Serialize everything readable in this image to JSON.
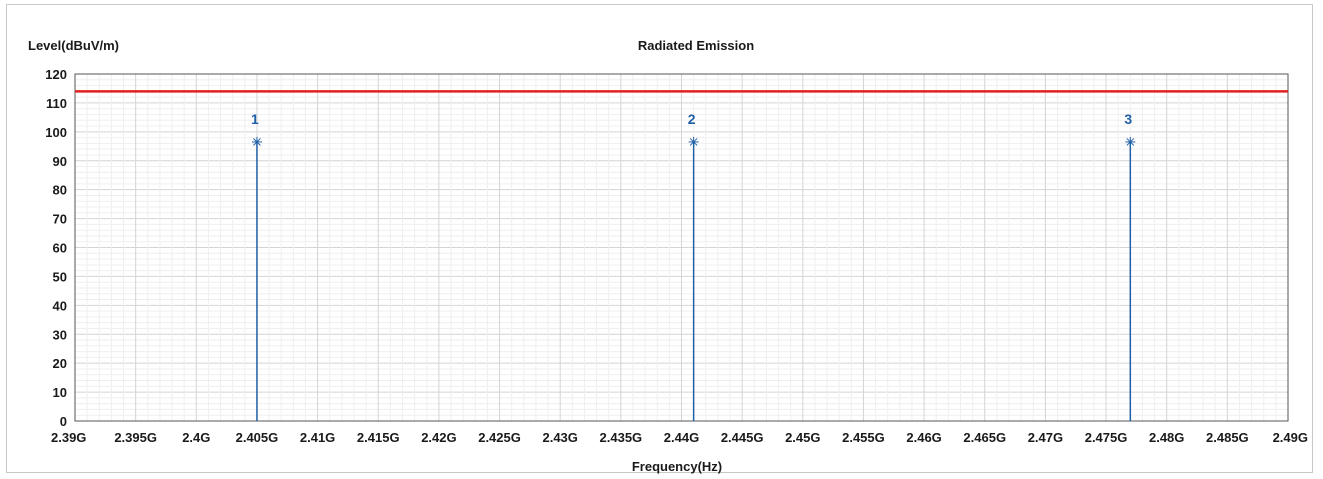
{
  "chart_data": {
    "type": "line",
    "title": "Radiated Emission",
    "ylabel": "Level(dBuV/m)",
    "xlabel": "Frequency(Hz)",
    "x_unit": "Hz",
    "ylim": [
      0,
      120
    ],
    "xlim": [
      2390000000,
      2490000000
    ],
    "yticks": [
      0,
      10,
      20,
      30,
      40,
      50,
      60,
      70,
      80,
      90,
      100,
      110,
      120
    ],
    "xticks": [
      {
        "value": 2390000000,
        "label": "2.39G"
      },
      {
        "value": 2395000000,
        "label": "2.395G"
      },
      {
        "value": 2400000000,
        "label": "2.4G"
      },
      {
        "value": 2405000000,
        "label": "2.405G"
      },
      {
        "value": 2410000000,
        "label": "2.41G"
      },
      {
        "value": 2415000000,
        "label": "2.415G"
      },
      {
        "value": 2420000000,
        "label": "2.42G"
      },
      {
        "value": 2425000000,
        "label": "2.425G"
      },
      {
        "value": 2430000000,
        "label": "2.43G"
      },
      {
        "value": 2435000000,
        "label": "2.435G"
      },
      {
        "value": 2440000000,
        "label": "2.44G"
      },
      {
        "value": 2445000000,
        "label": "2.445G"
      },
      {
        "value": 2450000000,
        "label": "2.45G"
      },
      {
        "value": 2455000000,
        "label": "2.455G"
      },
      {
        "value": 2460000000,
        "label": "2.46G"
      },
      {
        "value": 2465000000,
        "label": "2.465G"
      },
      {
        "value": 2470000000,
        "label": "2.47G"
      },
      {
        "value": 2475000000,
        "label": "2.475G"
      },
      {
        "value": 2480000000,
        "label": "2.48G"
      },
      {
        "value": 2485000000,
        "label": "2.485G"
      },
      {
        "value": 2490000000,
        "label": "2.49G"
      }
    ],
    "grid": true,
    "limit_line": {
      "value": 114,
      "color": "#e02020"
    },
    "markers": [
      {
        "label": "1",
        "x": 2405000000,
        "y": 96.5
      },
      {
        "label": "2",
        "x": 2441000000,
        "y": 96.5
      },
      {
        "label": "3",
        "x": 2477000000,
        "y": 96.5
      }
    ],
    "colors": {
      "trace": "#1f5fa8",
      "marker_label": "#1f5fa8",
      "limit": "#e02020",
      "grid": "#e4e4e4"
    }
  }
}
